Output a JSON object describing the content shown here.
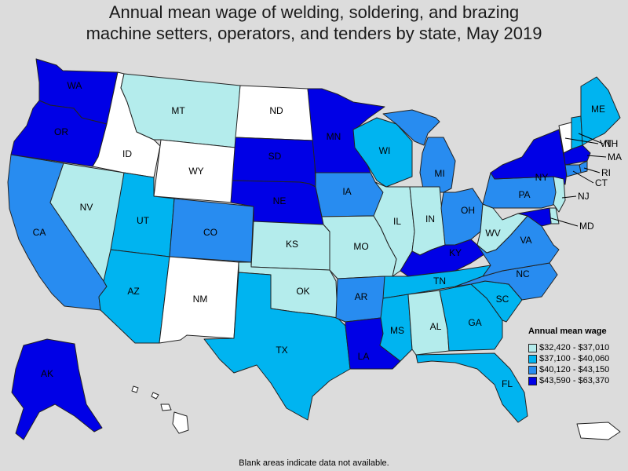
{
  "title_lines": [
    "Annual mean wage of welding, soldering, and brazing",
    "machine setters, operators, and tenders by state, May 2019"
  ],
  "legend": {
    "title": "Annual mean wage",
    "items": [
      {
        "label": "$32,420 - $37,010",
        "color": "#b4ecec"
      },
      {
        "label": "$37,100 - $40,060",
        "color": "#00b4f0"
      },
      {
        "label": "$40,120 - $43,150",
        "color": "#288cf0"
      },
      {
        "label": "$43,590 - $63,370",
        "color": "#0000e6"
      }
    ]
  },
  "no_data_color": "#ffffff",
  "footnote": "Blank areas indicate data not available.",
  "chart_data": {
    "type": "choropleth",
    "value": "Annual mean wage",
    "states": [
      {
        "abbr": "WA",
        "bin": 4
      },
      {
        "abbr": "OR",
        "bin": 4
      },
      {
        "abbr": "CA",
        "bin": 3
      },
      {
        "abbr": "NV",
        "bin": 1
      },
      {
        "abbr": "ID",
        "bin": 0
      },
      {
        "abbr": "MT",
        "bin": 1
      },
      {
        "abbr": "WY",
        "bin": 0
      },
      {
        "abbr": "UT",
        "bin": 2
      },
      {
        "abbr": "AZ",
        "bin": 2
      },
      {
        "abbr": "CO",
        "bin": 3
      },
      {
        "abbr": "NM",
        "bin": 0
      },
      {
        "abbr": "ND",
        "bin": 0
      },
      {
        "abbr": "SD",
        "bin": 4
      },
      {
        "abbr": "NE",
        "bin": 4
      },
      {
        "abbr": "KS",
        "bin": 1
      },
      {
        "abbr": "OK",
        "bin": 1
      },
      {
        "abbr": "TX",
        "bin": 2
      },
      {
        "abbr": "MN",
        "bin": 4
      },
      {
        "abbr": "IA",
        "bin": 3
      },
      {
        "abbr": "MO",
        "bin": 1
      },
      {
        "abbr": "AR",
        "bin": 3
      },
      {
        "abbr": "LA",
        "bin": 4
      },
      {
        "abbr": "WI",
        "bin": 2
      },
      {
        "abbr": "IL",
        "bin": 1
      },
      {
        "abbr": "MI",
        "bin": 3
      },
      {
        "abbr": "IN",
        "bin": 1
      },
      {
        "abbr": "OH",
        "bin": 3
      },
      {
        "abbr": "KY",
        "bin": 4
      },
      {
        "abbr": "TN",
        "bin": 2
      },
      {
        "abbr": "MS",
        "bin": 2
      },
      {
        "abbr": "AL",
        "bin": 1
      },
      {
        "abbr": "GA",
        "bin": 2
      },
      {
        "abbr": "FL",
        "bin": 2
      },
      {
        "abbr": "SC",
        "bin": 2
      },
      {
        "abbr": "NC",
        "bin": 3
      },
      {
        "abbr": "VA",
        "bin": 3
      },
      {
        "abbr": "WV",
        "bin": 1
      },
      {
        "abbr": "PA",
        "bin": 3
      },
      {
        "abbr": "NY",
        "bin": 4
      },
      {
        "abbr": "VT",
        "bin": 0
      },
      {
        "abbr": "NH",
        "bin": 2
      },
      {
        "abbr": "ME",
        "bin": 2
      },
      {
        "abbr": "MA",
        "bin": 4
      },
      {
        "abbr": "RI",
        "bin": 3
      },
      {
        "abbr": "CT",
        "bin": 3
      },
      {
        "abbr": "NJ",
        "bin": 1
      },
      {
        "abbr": "DE",
        "bin": 1
      },
      {
        "abbr": "MD",
        "bin": 4
      },
      {
        "abbr": "AK",
        "bin": 4
      },
      {
        "abbr": "HI",
        "bin": 0
      },
      {
        "abbr": "PR",
        "bin": 0
      }
    ]
  }
}
